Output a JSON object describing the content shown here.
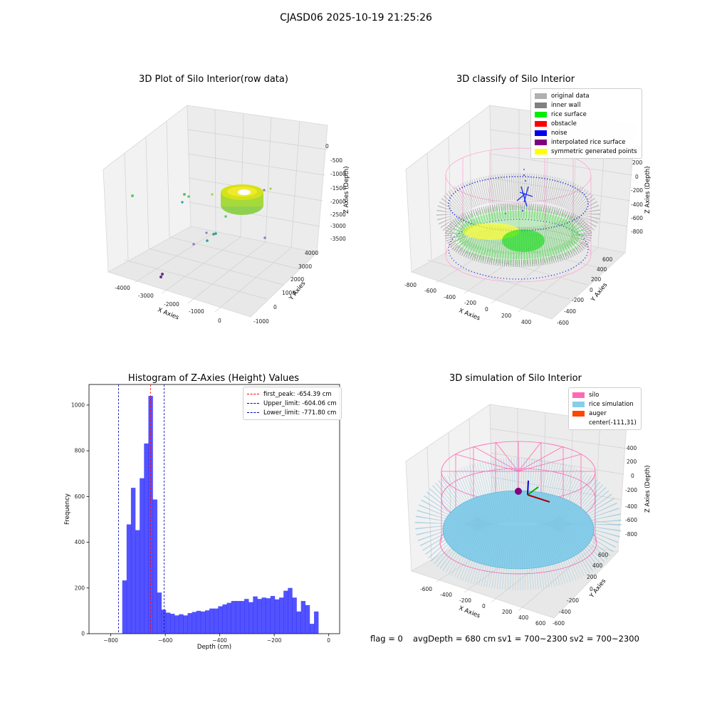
{
  "figure_title": "CJASD06 2025-10-19 21:25:26",
  "panels": {
    "raw": {
      "title": "3D Plot of Silo Interior(row data)",
      "xlabel": "X Axies",
      "ylabel": "Y Axies",
      "zlabel": "Z Axies (Depth)",
      "xticks": [
        "-4000",
        "-3000",
        "-2000",
        "-1000",
        "0"
      ],
      "yticks": [
        "-1000",
        "0",
        "1000",
        "2000",
        "3000",
        "4000"
      ],
      "zticks": [
        "0",
        "-500",
        "-1000",
        "-1500",
        "-2000",
        "-2500",
        "-3000",
        "-3500"
      ]
    },
    "classify": {
      "title": "3D classify of Silo Interior",
      "xlabel": "X Axies",
      "ylabel": "Y Axies",
      "zlabel": "Z Axies (Depth)",
      "xticks": [
        "-800",
        "-600",
        "-400",
        "-200",
        "0",
        "200",
        "400"
      ],
      "yticks": [
        "-600",
        "-400",
        "-200",
        "0",
        "200",
        "400",
        "600"
      ],
      "zticks": [
        "400",
        "200",
        "0",
        "-200",
        "-400",
        "-600",
        "-800"
      ],
      "legend": [
        {
          "label": "original data",
          "color": "#b0b0b0"
        },
        {
          "label": "inner wall",
          "color": "#808080"
        },
        {
          "label": "rice surface",
          "color": "#00ee00"
        },
        {
          "label": "obstacle",
          "color": "#ff0000"
        },
        {
          "label": "noise",
          "color": "#0000ee"
        },
        {
          "label": "interpolated rice surface",
          "color": "#800080"
        },
        {
          "label": "symmetric generated points",
          "color": "#ffff00"
        }
      ]
    },
    "histogram": {
      "title": "Histogram of Z-Axies (Height) Values",
      "legend": [
        {
          "label": "first_peak: -654.39 cm",
          "color": "#ff0000"
        },
        {
          "label": "Upper_limit: -604.06 cm",
          "color": "#0000aa"
        },
        {
          "label": "Lower_limit: -771.80 cm",
          "color": "#0000aa"
        }
      ]
    },
    "simulation": {
      "title": "3D simulation of Silo Interior",
      "xlabel": "X Axies",
      "ylabel": "Y Axies",
      "zlabel": "Z Axies (Depth)",
      "xticks": [
        "-600",
        "-400",
        "-200",
        "0",
        "200",
        "400",
        "600"
      ],
      "yticks": [
        "-600",
        "-400",
        "-200",
        "0",
        "200",
        "400",
        "600"
      ],
      "zticks": [
        "400",
        "200",
        "0",
        "-200",
        "-400",
        "-600",
        "-800"
      ],
      "legend": [
        {
          "label": "silo",
          "color": "#ff69b4"
        },
        {
          "label": "rice simulation",
          "color": "#87ceeb"
        },
        {
          "label": "auger",
          "color": "#ff4500"
        },
        {
          "label": "center(-111,31)",
          "color": "#ffffff"
        }
      ]
    }
  },
  "footer": {
    "flag": "flag = 0",
    "avg": "avgDepth = 680 cm",
    "sv1": "sv1 = 700~2300",
    "sv2": "sv2 = 700~2300"
  },
  "chart_data": [
    {
      "type": "bar",
      "title": "Histogram of Z-Axies (Height) Values",
      "xlabel": "Depth (cm)",
      "ylabel": "Frequency",
      "xlim": [
        -880,
        40
      ],
      "ylim": [
        0,
        1090
      ],
      "xticks": [
        -800,
        -600,
        -400,
        -200,
        0
      ],
      "yticks": [
        0,
        200,
        400,
        600,
        800,
        1000
      ],
      "bar_color": "#0000ff",
      "bin_start": -758,
      "bin_width": 16,
      "values": [
        233,
        478,
        638,
        453,
        680,
        832,
        1040,
        587,
        180,
        105,
        92,
        87,
        80,
        85,
        80,
        90,
        95,
        100,
        97,
        102,
        110,
        110,
        120,
        128,
        135,
        143,
        143,
        143,
        152,
        138,
        163,
        152,
        158,
        155,
        165,
        150,
        158,
        188,
        200,
        158,
        97,
        143,
        125,
        43,
        97
      ],
      "vlines": [
        {
          "x": -654.39,
          "color": "#ff0000",
          "label": "first_peak: -654.39 cm"
        },
        {
          "x": -604.06,
          "color": "#0000aa",
          "label": "Upper_limit: -604.06 cm"
        },
        {
          "x": -771.8,
          "color": "#0000aa",
          "label": "Lower_limit: -771.80 cm"
        }
      ]
    }
  ]
}
